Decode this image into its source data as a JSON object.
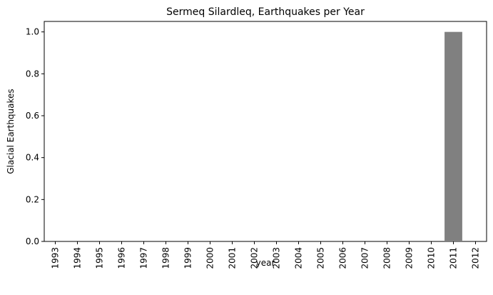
{
  "chart_data": {
    "type": "bar",
    "title": "Sermeq Silardleq, Earthquakes per Year",
    "xlabel": "year",
    "ylabel": "Glacial Earthquakes",
    "categories": [
      "1993",
      "1994",
      "1995",
      "1996",
      "1997",
      "1998",
      "1999",
      "2000",
      "2001",
      "2002",
      "2003",
      "2004",
      "2005",
      "2006",
      "2007",
      "2008",
      "2009",
      "2010",
      "2011",
      "2012"
    ],
    "values": [
      0,
      0,
      0,
      0,
      0,
      0,
      0,
      0,
      0,
      0,
      0,
      0,
      0,
      0,
      0,
      0,
      0,
      0,
      1,
      0
    ],
    "ylim": [
      0,
      1.05
    ],
    "yticks": [
      "0.0",
      "0.2",
      "0.4",
      "0.6",
      "0.8",
      "1.0"
    ],
    "bar_color": "#808080",
    "grid": false,
    "legend": false
  }
}
